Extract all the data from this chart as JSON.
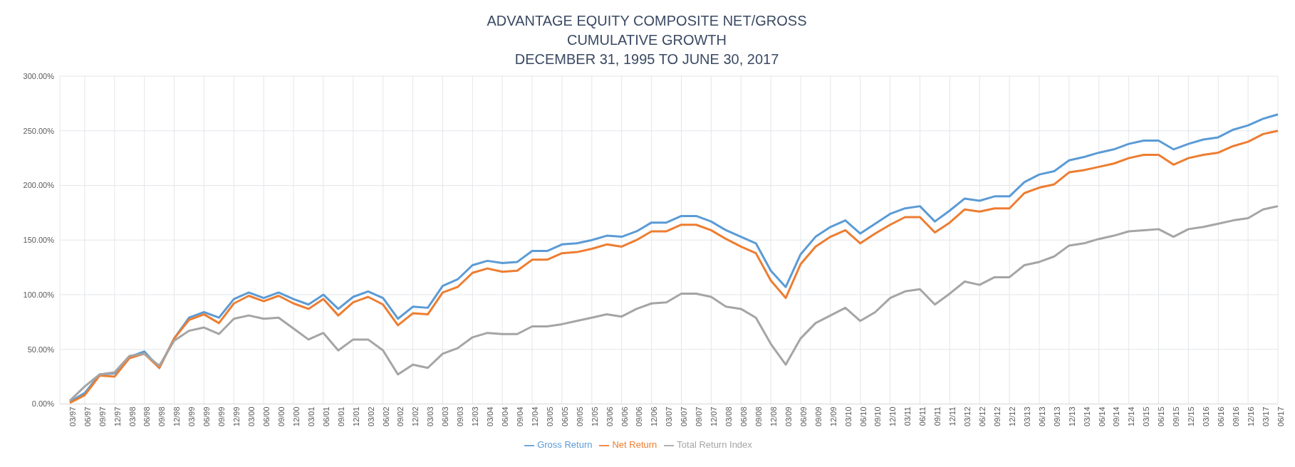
{
  "chart_data": {
    "type": "line",
    "title": "ADVANTAGE EQUITY COMPOSITE NET/GROSS\nCUMULATIVE GROWTH",
    "subtitle": "DECEMBER 31, 1995 TO JUNE 30, 2017",
    "categories": [
      "03/97",
      "06/97",
      "09/97",
      "12/97",
      "03/98",
      "06/98",
      "09/98",
      "12/98",
      "03/99",
      "06/99",
      "09/99",
      "12/99",
      "03/00",
      "06/00",
      "09/00",
      "12/00",
      "03/01",
      "06/01",
      "09/01",
      "12/01",
      "03/02",
      "06/02",
      "09/02",
      "12/02",
      "03/03",
      "06/03",
      "09/03",
      "12/03",
      "03/04",
      "06/04",
      "09/04",
      "12/04",
      "03/05",
      "06/05",
      "09/05",
      "12/05",
      "03/06",
      "06/06",
      "09/06",
      "12/06",
      "03/07",
      "06/07",
      "09/07",
      "12/07",
      "03/08",
      "06/08",
      "09/08",
      "12/08",
      "03/09",
      "06/09",
      "09/09",
      "12/09",
      "03/10",
      "06/10",
      "09/10",
      "12/10",
      "03/11",
      "06/11",
      "09/11",
      "12/11",
      "03/12",
      "06/12",
      "09/12",
      "12/12",
      "03/13",
      "06/13",
      "09/13",
      "12/13",
      "03/14",
      "06/14",
      "09/14",
      "12/14",
      "03/15",
      "06/15",
      "09/15",
      "12/15",
      "03/16",
      "06/16",
      "09/16",
      "12/16",
      "03/17",
      "06/17"
    ],
    "series": [
      {
        "name": "Gross Return",
        "color": "#5b9bd5",
        "values": [
          2,
          10,
          27,
          28,
          43,
          48,
          33,
          60,
          79,
          84,
          79,
          96,
          102,
          97,
          102,
          96,
          91,
          100,
          87,
          98,
          103,
          97,
          78,
          89,
          88,
          108,
          114,
          127,
          131,
          129,
          130,
          140,
          140,
          146,
          147,
          150,
          154,
          153,
          158,
          166,
          166,
          172,
          172,
          167,
          159,
          153,
          147,
          122,
          107,
          137,
          153,
          162,
          168,
          156,
          165,
          174,
          179,
          181,
          167,
          177,
          188,
          186,
          190,
          190,
          203,
          210,
          213,
          223,
          226,
          230,
          233,
          238,
          241,
          241,
          233,
          238,
          242,
          244,
          251,
          255,
          261,
          265
        ]
      },
      {
        "name": "Net Return",
        "color": "#ed7d31",
        "values": [
          1,
          8,
          26,
          25,
          42,
          46,
          33,
          60,
          77,
          82,
          74,
          92,
          99,
          94,
          99,
          92,
          87,
          96,
          81,
          93,
          98,
          91,
          72,
          83,
          82,
          102,
          107,
          120,
          124,
          121,
          122,
          132,
          132,
          138,
          139,
          142,
          146,
          144,
          150,
          158,
          158,
          164,
          164,
          159,
          151,
          144,
          138,
          113,
          97,
          128,
          144,
          153,
          159,
          147,
          156,
          164,
          171,
          171,
          157,
          166,
          178,
          176,
          179,
          179,
          193,
          198,
          201,
          212,
          214,
          217,
          220,
          225,
          228,
          228,
          219,
          225,
          228,
          230,
          236,
          240,
          247,
          250
        ]
      },
      {
        "name": "Total Return Index",
        "color": "#a5a5a5",
        "values": [
          3,
          16,
          27,
          29,
          44,
          46,
          35,
          58,
          67,
          70,
          64,
          78,
          81,
          78,
          79,
          69,
          59,
          65,
          49,
          59,
          59,
          49,
          27,
          36,
          33,
          46,
          51,
          61,
          65,
          64,
          64,
          71,
          71,
          73,
          76,
          79,
          82,
          80,
          87,
          92,
          93,
          101,
          101,
          98,
          89,
          87,
          79,
          55,
          36,
          60,
          74,
          81,
          88,
          76,
          84,
          97,
          103,
          105,
          91,
          101,
          112,
          109,
          116,
          116,
          127,
          130,
          135,
          145,
          147,
          151,
          154,
          158,
          159,
          160,
          153,
          160,
          162,
          165,
          168,
          170,
          178,
          181
        ]
      }
    ],
    "ylim": [
      0,
      300
    ],
    "yticks": [
      {
        "value": 0,
        "label": "0.00%"
      },
      {
        "value": 50,
        "label": "50.00%"
      },
      {
        "value": 100,
        "label": "100.00%"
      },
      {
        "value": 150,
        "label": "150.00%"
      },
      {
        "value": 200,
        "label": "200.00%"
      },
      {
        "value": 250,
        "label": "250.00%"
      },
      {
        "value": 300,
        "label": "300.00%"
      }
    ],
    "grid": true,
    "legend": "bottom",
    "marker": "none",
    "line_style": "solid"
  }
}
